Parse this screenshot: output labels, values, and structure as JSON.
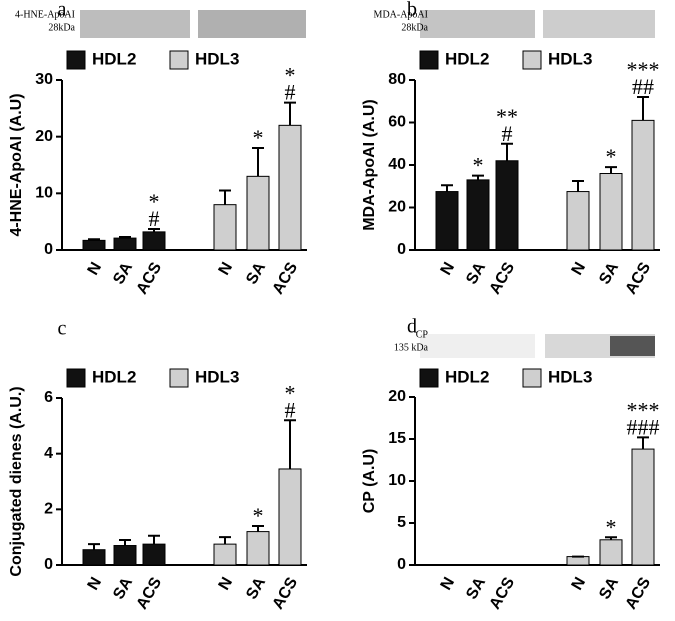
{
  "chart_data": [
    {
      "type": "bar",
      "panel_label": "a",
      "blot_labels": [
        "4-HNE-ApoAI",
        "28kDa"
      ],
      "ylabel": "4-HNE-ApoAI (A.U)",
      "categories": [
        "N",
        "SA",
        "ACS"
      ],
      "ylim": [
        0,
        30
      ],
      "yticks": [
        0,
        10,
        20,
        30
      ],
      "series": [
        {
          "name": "HDL2",
          "color": "#111111",
          "values": [
            1.7,
            2.1,
            3.2
          ],
          "errors": [
            0.2,
            0.2,
            0.5
          ],
          "annotations": [
            null,
            null,
            [
              "*",
              "#"
            ]
          ]
        },
        {
          "name": "HDL3",
          "color": "#cfcfcf",
          "values": [
            8,
            13,
            22
          ],
          "errors": [
            2.5,
            5,
            4
          ],
          "annotations": [
            null,
            [
              "*"
            ],
            [
              "*",
              "#"
            ]
          ]
        }
      ]
    },
    {
      "type": "bar",
      "panel_label": "b",
      "blot_labels": [
        "MDA-ApoAI",
        "28kDa"
      ],
      "ylabel": "MDA-ApoAI (A.U)",
      "categories": [
        "N",
        "SA",
        "ACS"
      ],
      "ylim": [
        0,
        80
      ],
      "yticks": [
        0,
        20,
        40,
        60,
        80
      ],
      "series": [
        {
          "name": "HDL2",
          "color": "#111111",
          "values": [
            27.5,
            33,
            42
          ],
          "errors": [
            3,
            2,
            8
          ],
          "annotations": [
            null,
            [
              "*"
            ],
            [
              "**",
              "#"
            ]
          ]
        },
        {
          "name": "HDL3",
          "color": "#cfcfcf",
          "values": [
            27.5,
            36,
            61
          ],
          "errors": [
            5,
            3,
            11
          ],
          "annotations": [
            null,
            [
              "*"
            ],
            [
              "***",
              "##"
            ]
          ]
        }
      ]
    },
    {
      "type": "bar",
      "panel_label": "c",
      "ylabel": "Conjugated dienes (A.U.)",
      "categories": [
        "N",
        "SA",
        "ACS"
      ],
      "ylim": [
        0,
        6
      ],
      "yticks": [
        0,
        2,
        4,
        6
      ],
      "series": [
        {
          "name": "HDL2",
          "color": "#111111",
          "values": [
            0.55,
            0.7,
            0.75
          ],
          "errors": [
            0.2,
            0.2,
            0.3
          ],
          "annotations": [
            null,
            null,
            null
          ]
        },
        {
          "name": "HDL3",
          "color": "#cfcfcf",
          "values": [
            0.75,
            1.2,
            3.45
          ],
          "errors": [
            0.25,
            0.2,
            1.75
          ],
          "annotations": [
            null,
            [
              "*"
            ],
            [
              "*",
              "#"
            ]
          ]
        }
      ]
    },
    {
      "type": "bar",
      "panel_label": "d",
      "blot_labels": [
        "CP",
        "135 kDa"
      ],
      "ylabel": "CP (A.U)",
      "categories": [
        "N",
        "SA",
        "ACS"
      ],
      "ylim": [
        0,
        20
      ],
      "yticks": [
        0,
        5,
        10,
        15,
        20
      ],
      "series": [
        {
          "name": "HDL2",
          "color": "#111111",
          "values": [
            0,
            0,
            0
          ],
          "errors": [
            null,
            null,
            null
          ],
          "annotations": [
            null,
            null,
            null
          ]
        },
        {
          "name": "HDL3",
          "color": "#cfcfcf",
          "values": [
            1,
            3,
            13.8
          ],
          "errors": [
            0,
            0.3,
            1.4
          ],
          "annotations": [
            null,
            [
              "*"
            ],
            [
              "***",
              "###"
            ]
          ]
        }
      ]
    }
  ]
}
